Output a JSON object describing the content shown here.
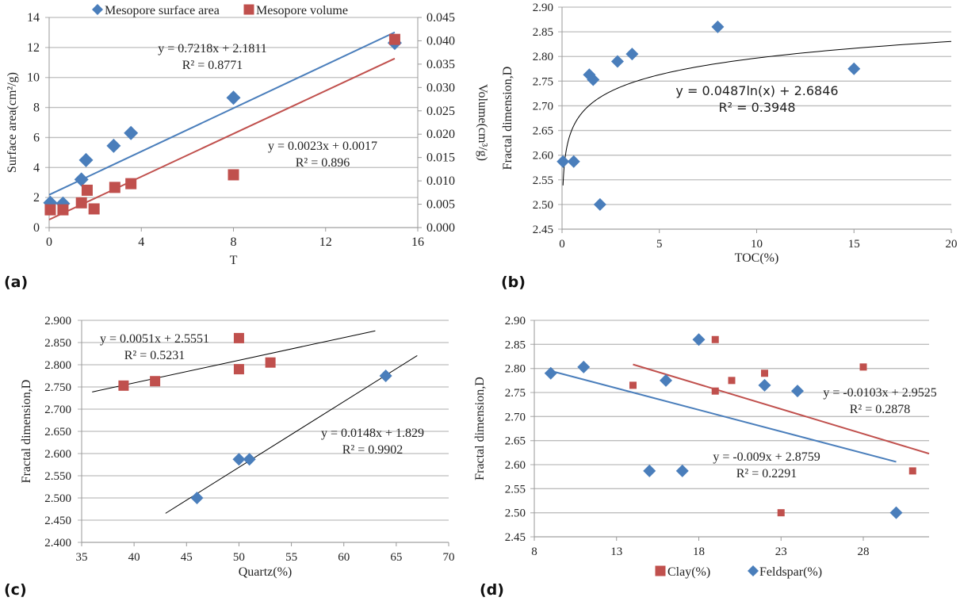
{
  "chart_data": [
    {
      "panel_label": "(a)",
      "type": "scatter",
      "xlabel": "T",
      "ylabel": "Surface area(cm²/g)",
      "y2label": "Volume(cm³/g)",
      "xlim": [
        0,
        16
      ],
      "ylim": [
        0,
        14
      ],
      "y2lim": [
        0,
        0.045
      ],
      "x_ticks": [
        "0",
        "4",
        "8",
        "12",
        "16"
      ],
      "y_ticks": [
        "0",
        "2",
        "4",
        "6",
        "8",
        "10",
        "12",
        "14"
      ],
      "y2_ticks": [
        "0.000",
        "0.005",
        "0.010",
        "0.015",
        "0.020",
        "0.025",
        "0.030",
        "0.035",
        "0.040",
        "0.045"
      ],
      "grid": true,
      "legend": "top",
      "series": [
        {
          "name": "Mesopore surface area",
          "marker": "diamond",
          "color": "#4a7ebb",
          "axis": "left",
          "points": [
            [
              0.05,
              1.65
            ],
            [
              0.6,
              1.6
            ],
            [
              1.4,
              3.2
            ],
            [
              1.6,
              4.5
            ],
            [
              2.8,
              5.45
            ],
            [
              3.55,
              6.3
            ],
            [
              8,
              8.65
            ],
            [
              15,
              12.3
            ]
          ],
          "trendline": {
            "type": "linear",
            "slope": 0.7218,
            "intercept": 2.1811,
            "x_range": [
              0,
              15
            ],
            "color": "#4a7ebb",
            "equation": "y = 0.7218x + 2.1811",
            "r2": "R² = 0.8771"
          }
        },
        {
          "name": "Mesopore volume",
          "marker": "square",
          "color": "#c0504d",
          "axis": "right",
          "points": [
            [
              0.05,
              0.0038
            ],
            [
              0.6,
              0.0038
            ],
            [
              1.4,
              0.0053
            ],
            [
              1.65,
              0.008
            ],
            [
              1.95,
              0.004
            ],
            [
              2.85,
              0.0086
            ],
            [
              3.55,
              0.0094
            ],
            [
              8,
              0.0113
            ],
            [
              15,
              0.0403
            ]
          ],
          "trendline": {
            "type": "linear",
            "slope": 0.0023,
            "intercept": 0.0017,
            "x_range": [
              0,
              15
            ],
            "color": "#c0504d",
            "equation": "y = 0.0023x + 0.0017",
            "r2": "R² = 0.896"
          }
        }
      ]
    },
    {
      "panel_label": "(b)",
      "type": "scatter",
      "xlabel": "TOC(%)",
      "ylabel": "Fractal dimension,D",
      "xlim": [
        0,
        20
      ],
      "ylim": [
        2.45,
        2.9
      ],
      "x_ticks": [
        "0",
        "5",
        "10",
        "15",
        "20"
      ],
      "y_ticks": [
        "2.45",
        "2.50",
        "2.55",
        "2.60",
        "2.65",
        "2.70",
        "2.75",
        "2.80",
        "2.85",
        "2.90"
      ],
      "grid": true,
      "series": [
        {
          "marker": "diamond",
          "color": "#4a7ebb",
          "points": [
            [
              0.05,
              2.587
            ],
            [
              0.6,
              2.587
            ],
            [
              1.4,
              2.763
            ],
            [
              1.6,
              2.753
            ],
            [
              1.95,
              2.5
            ],
            [
              2.85,
              2.79
            ],
            [
              3.6,
              2.805
            ],
            [
              8,
              2.86
            ],
            [
              15,
              2.775
            ]
          ],
          "trendline": {
            "type": "log",
            "a": 0.0487,
            "b": 2.6846,
            "x_range": [
              0.05,
              20
            ],
            "color": "#000000",
            "equation": "y = 0.0487ln(x) + 2.6846",
            "r2": "R² = 0.3948"
          }
        }
      ]
    },
    {
      "panel_label": "(c)",
      "type": "scatter",
      "xlabel": "Quartz(%)",
      "ylabel": "Fractal dimension,D",
      "xlim": [
        35,
        70
      ],
      "ylim": [
        2.4,
        2.9
      ],
      "x_ticks": [
        "35",
        "40",
        "45",
        "50",
        "55",
        "60",
        "65",
        "70"
      ],
      "y_ticks": [
        "2.400",
        "2.450",
        "2.500",
        "2.550",
        "2.600",
        "2.650",
        "2.700",
        "2.750",
        "2.800",
        "2.850",
        "2.900"
      ],
      "grid": true,
      "series": [
        {
          "marker": "square",
          "color": "#c0504d",
          "points": [
            [
              39,
              2.753
            ],
            [
              42,
              2.763
            ],
            [
              50,
              2.86
            ],
            [
              50,
              2.79
            ],
            [
              53,
              2.805
            ]
          ],
          "trendline": {
            "type": "linear",
            "slope": 0.0051,
            "intercept": 2.5551,
            "x_range": [
              36,
              63
            ],
            "color": "#000000",
            "equation": "y = 0.0051x + 2.5551",
            "r2": "R² = 0.5231"
          }
        },
        {
          "marker": "diamond",
          "color": "#4a7ebb",
          "points": [
            [
              46,
              2.5
            ],
            [
              50,
              2.587
            ],
            [
              51,
              2.587
            ],
            [
              64,
              2.775
            ]
          ],
          "trendline": {
            "type": "linear",
            "slope": 0.0148,
            "intercept": 1.829,
            "x_range": [
              43,
              67
            ],
            "color": "#000000",
            "equation": "y = 0.0148x + 1.829",
            "r2": "R² = 0.9902"
          }
        }
      ]
    },
    {
      "panel_label": "(d)",
      "type": "scatter",
      "xlabel": "",
      "ylabel": "Fractal dimension,D",
      "xlim": [
        8,
        32
      ],
      "ylim": [
        2.45,
        2.9
      ],
      "x_ticks": [
        "8",
        "13",
        "18",
        "23",
        "28"
      ],
      "y_ticks": [
        "2.45",
        "2.50",
        "2.55",
        "2.60",
        "2.65",
        "2.70",
        "2.75",
        "2.80",
        "2.85",
        "2.90"
      ],
      "grid": true,
      "legend": "bottom",
      "series": [
        {
          "name": "Clay(%)",
          "marker": "square",
          "color": "#c0504d",
          "points": [
            [
              14,
              2.765
            ],
            [
              19,
              2.86
            ],
            [
              19,
              2.753
            ],
            [
              20,
              2.775
            ],
            [
              22,
              2.79
            ],
            [
              23,
              2.5
            ],
            [
              28,
              2.803
            ],
            [
              31,
              2.587
            ]
          ],
          "trendline": {
            "type": "linear",
            "slope": -0.0103,
            "intercept": 2.9525,
            "x_range": [
              14,
              32
            ],
            "color": "#c0504d",
            "equation": "y = -0.0103x + 2.9525",
            "r2": "R² = 0.2878"
          }
        },
        {
          "name": "Feldspar(%)",
          "marker": "diamond",
          "color": "#4a7ebb",
          "points": [
            [
              9,
              2.79
            ],
            [
              11,
              2.803
            ],
            [
              15,
              2.587
            ],
            [
              16,
              2.775
            ],
            [
              17,
              2.587
            ],
            [
              18,
              2.86
            ],
            [
              22,
              2.765
            ],
            [
              24,
              2.753
            ],
            [
              30,
              2.5
            ]
          ],
          "trendline": {
            "type": "linear",
            "slope": -0.009,
            "intercept": 2.8759,
            "x_range": [
              9,
              30
            ],
            "color": "#4a7ebb",
            "equation": "y = -0.009x + 2.8759",
            "r2": "R² = 0.2291"
          }
        }
      ]
    }
  ]
}
